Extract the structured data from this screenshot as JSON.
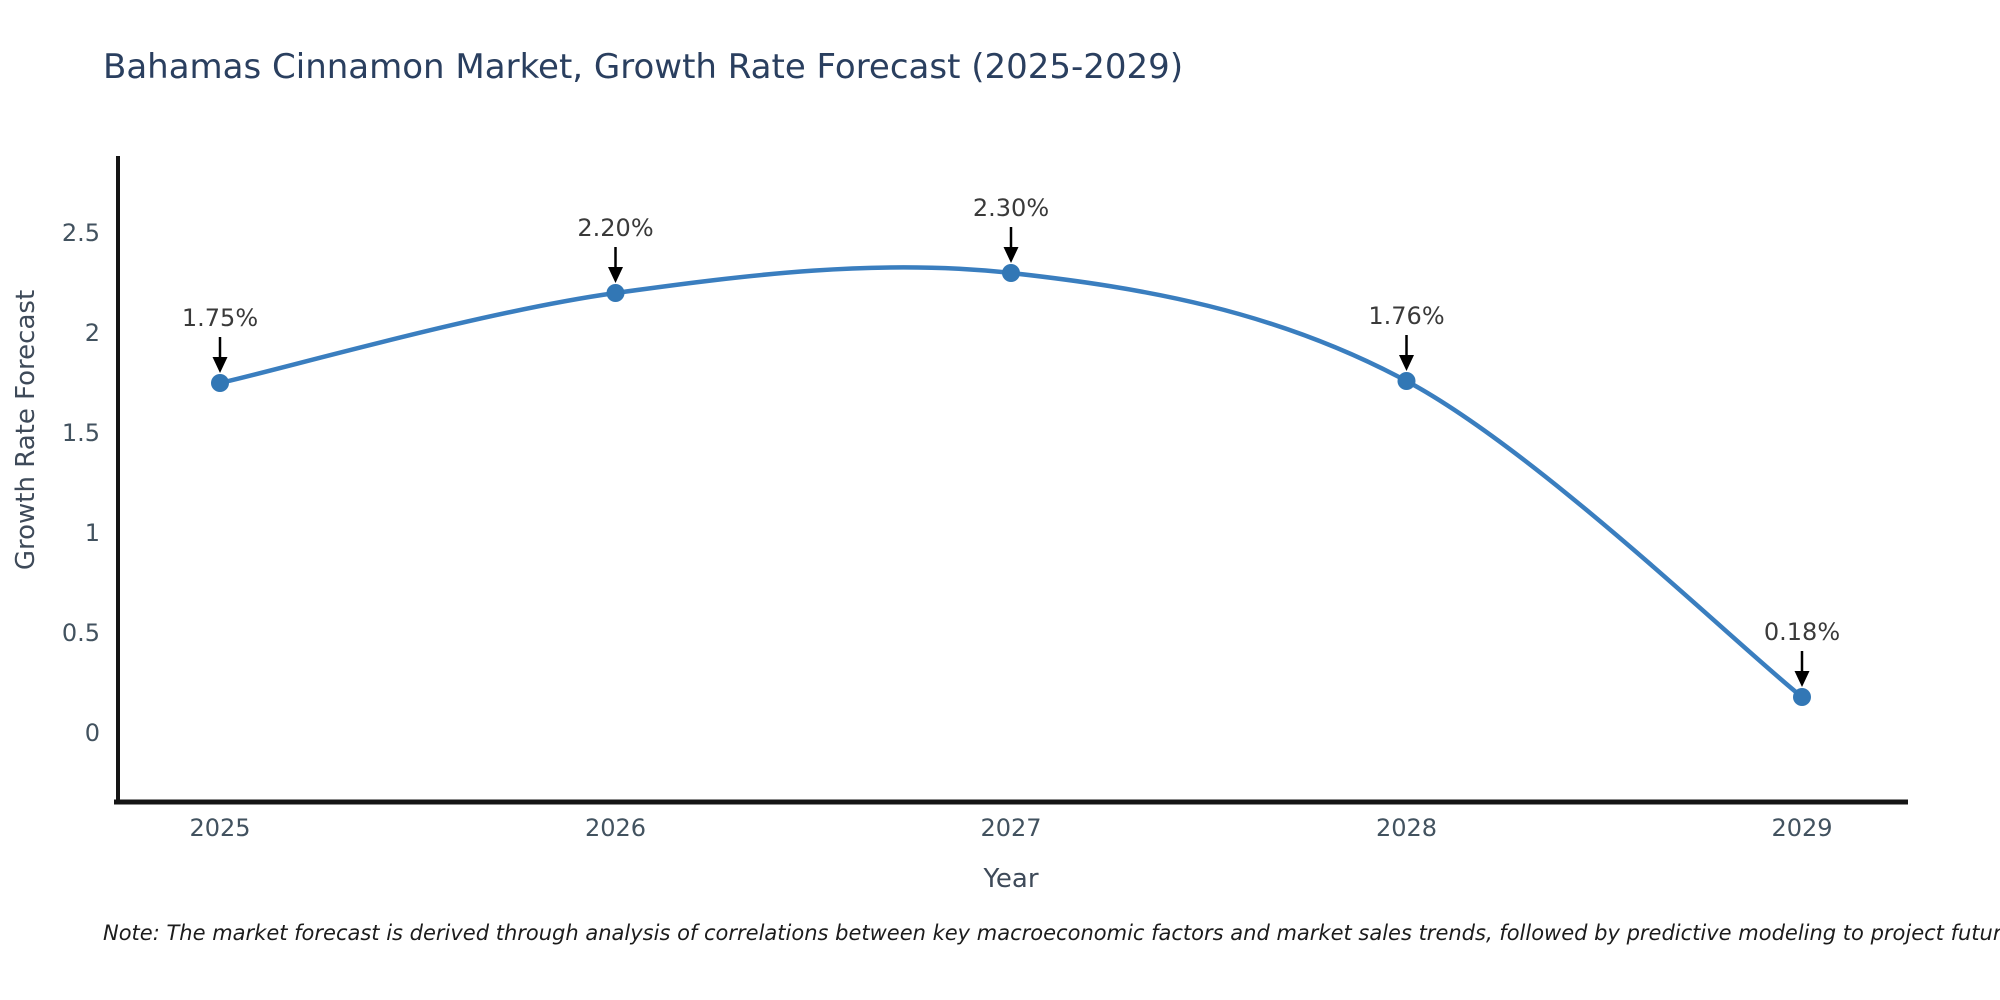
{
  "header": {
    "title": "Bahamas Cinnamon Market, Growth Rate Forecast (2025-2029)"
  },
  "chart_data": {
    "type": "line",
    "title": "Bahamas Cinnamon Market, Growth Rate Forecast (2025-2029)",
    "categories": [
      "2025",
      "2026",
      "2027",
      "2028",
      "2029"
    ],
    "series": [
      {
        "name": "Growth Rate Forecast",
        "values": [
          1.75,
          2.2,
          2.3,
          1.76,
          0.18
        ]
      }
    ],
    "point_labels": [
      "1.75%",
      "2.20%",
      "2.30%",
      "1.76%",
      "0.18%"
    ],
    "xlabel": "Year",
    "ylabel": "Growth Rate Forecast",
    "ytick_values": [
      0,
      0.5,
      1,
      1.5,
      2,
      2.5
    ],
    "ytick_labels": [
      "0",
      "0.5",
      "1",
      "1.5",
      "2",
      "2.5"
    ],
    "ylim": [
      -0.34,
      2.87
    ],
    "grid": false,
    "legend_position": "none",
    "line_color": "#3a7ebf",
    "marker_color": "#3277b5",
    "arrow_color": "#000000"
  },
  "footer": {
    "note": "Note: The market forecast is derived through analysis of correlations between key macroeconomic factors and market sales trends, followed by predictive modeling to project future sales"
  },
  "colors": {
    "title": "#2a3f5f",
    "tick_text": "#42525f",
    "axis_title_text": "#3e4a59",
    "annotation_text": "#3a3a3a",
    "spine": "#151515",
    "note_text": "#1c1c1c",
    "background": "#ffffff"
  }
}
